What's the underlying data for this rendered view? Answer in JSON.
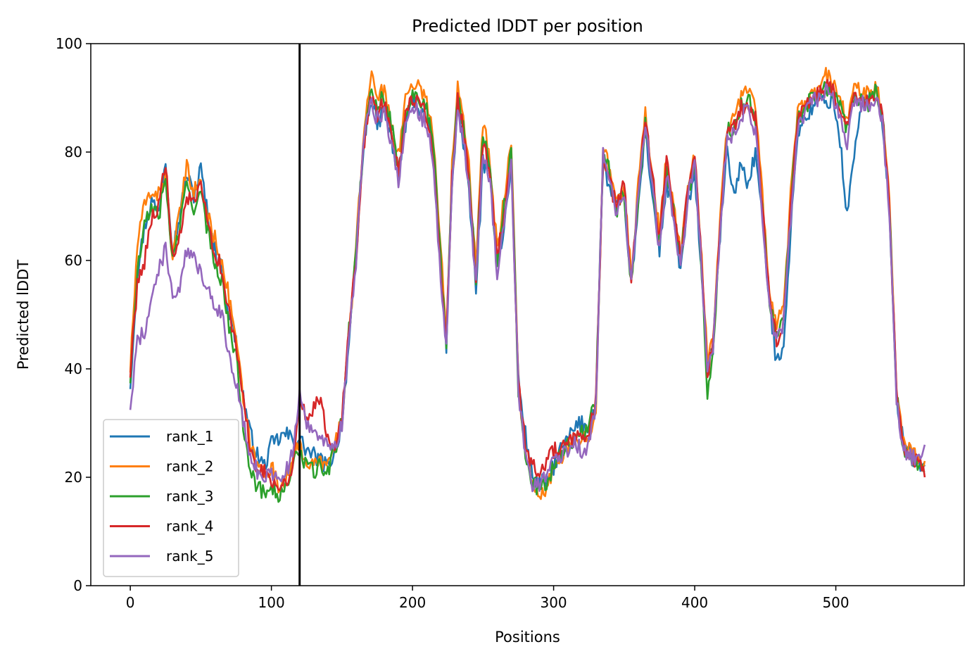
{
  "chart_data": {
    "type": "line",
    "title": "Predicted lDDT per position",
    "xlabel": "Positions",
    "ylabel": "Predicted lDDT",
    "xlim": [
      -28,
      591
    ],
    "ylim": [
      0,
      100
    ],
    "xticks": [
      0,
      100,
      200,
      300,
      400,
      500
    ],
    "yticks": [
      0,
      20,
      40,
      60,
      80,
      100
    ],
    "grid": false,
    "legend_position": "lower-left",
    "vertical_line_x": 120,
    "x_anchor": [
      0,
      5,
      10,
      15,
      20,
      25,
      30,
      35,
      40,
      45,
      50,
      55,
      60,
      65,
      70,
      75,
      80,
      85,
      90,
      95,
      100,
      105,
      110,
      115,
      120,
      125,
      130,
      135,
      140,
      145,
      150,
      155,
      160,
      165,
      170,
      175,
      180,
      185,
      190,
      195,
      200,
      205,
      210,
      215,
      220,
      224,
      228,
      232,
      236,
      240,
      245,
      250,
      255,
      260,
      265,
      270,
      275,
      280,
      285,
      290,
      295,
      300,
      305,
      310,
      315,
      320,
      325,
      330,
      335,
      340,
      345,
      350,
      355,
      360,
      365,
      370,
      375,
      380,
      385,
      390,
      395,
      400,
      405,
      409,
      413,
      418,
      423,
      428,
      433,
      438,
      443,
      448,
      453,
      458,
      463,
      468,
      473,
      478,
      483,
      488,
      493,
      498,
      503,
      508,
      513,
      518,
      523,
      528,
      533,
      538,
      543,
      548,
      553,
      558,
      563
    ],
    "series": [
      {
        "name": "rank_1",
        "color": "#1f77b4",
        "values": [
          37,
          58,
          66,
          71,
          69,
          79,
          62,
          68,
          76,
          72,
          77,
          68,
          62,
          58,
          50,
          45,
          35,
          28,
          24,
          22,
          26,
          27,
          28,
          27,
          27,
          25,
          24,
          23,
          22,
          25,
          30,
          45,
          60,
          80,
          90,
          85,
          88,
          82,
          75,
          85,
          90,
          88,
          86,
          78,
          60,
          44,
          75,
          88,
          82,
          72,
          55,
          78,
          75,
          60,
          66,
          78,
          38,
          28,
          20,
          19,
          19,
          22,
          25,
          27,
          29,
          30,
          29,
          34,
          78,
          73,
          70,
          72,
          55,
          70,
          84,
          72,
          62,
          74,
          68,
          58,
          70,
          75,
          58,
          40,
          44,
          65,
          80,
          72,
          78,
          74,
          80,
          68,
          52,
          41,
          45,
          65,
          84,
          86,
          88,
          90,
          89,
          90,
          82,
          68,
          80,
          88,
          90,
          92,
          86,
          70,
          35,
          26,
          24,
          23,
          22
        ]
      },
      {
        "name": "rank_2",
        "color": "#ff7f0e",
        "values": [
          40,
          63,
          70,
          73,
          72,
          76,
          60,
          69,
          77,
          73,
          74,
          68,
          64,
          60,
          53,
          46,
          34,
          26,
          22,
          21,
          22,
          18,
          20,
          23,
          26,
          23,
          22,
          23,
          22,
          26,
          31,
          46,
          62,
          82,
          94,
          91,
          91,
          86,
          79,
          90,
          93,
          92,
          90,
          82,
          62,
          46,
          78,
          93,
          87,
          78,
          58,
          86,
          78,
          62,
          72,
          82,
          37,
          25,
          18,
          16,
          18,
          21,
          24,
          25,
          26,
          27,
          28,
          33,
          80,
          77,
          70,
          74,
          57,
          74,
          87,
          76,
          65,
          79,
          70,
          61,
          73,
          79,
          60,
          42,
          46,
          68,
          85,
          86,
          91,
          92,
          88,
          72,
          55,
          48,
          52,
          72,
          87,
          89,
          90,
          92,
          94,
          93,
          90,
          85,
          92,
          92,
          91,
          92,
          88,
          72,
          36,
          27,
          25,
          24,
          23
        ]
      },
      {
        "name": "rank_3",
        "color": "#2ca02c",
        "values": [
          38,
          58,
          66,
          70,
          68,
          75,
          60,
          66,
          74,
          70,
          72,
          65,
          60,
          56,
          48,
          42,
          30,
          22,
          18,
          17,
          19,
          16,
          18,
          22,
          25,
          22,
          21,
          22,
          21,
          25,
          31,
          47,
          62,
          81,
          92,
          89,
          90,
          85,
          77,
          87,
          91,
          90,
          88,
          80,
          60,
          44,
          76,
          91,
          85,
          76,
          57,
          84,
          76,
          60,
          70,
          80,
          36,
          24,
          19,
          18,
          19,
          22,
          25,
          26,
          27,
          28,
          29,
          35,
          80,
          76,
          69,
          73,
          55,
          72,
          86,
          75,
          63,
          77,
          69,
          60,
          72,
          78,
          58,
          35,
          43,
          66,
          84,
          84,
          89,
          90,
          86,
          70,
          52,
          46,
          49,
          70,
          86,
          88,
          90,
          91,
          92,
          91,
          88,
          84,
          90,
          90,
          89,
          91,
          87,
          70,
          35,
          25,
          23,
          22,
          21
        ]
      },
      {
        "name": "rank_4",
        "color": "#d62728",
        "values": [
          39,
          56,
          60,
          68,
          70,
          78,
          60,
          64,
          72,
          70,
          74,
          66,
          62,
          58,
          50,
          44,
          35,
          25,
          22,
          21,
          20,
          18,
          19,
          22,
          34,
          31,
          33,
          35,
          27,
          26,
          32,
          48,
          60,
          80,
          91,
          87,
          89,
          84,
          76,
          86,
          90,
          89,
          87,
          79,
          59,
          45,
          75,
          90,
          84,
          75,
          56,
          82,
          76,
          61,
          68,
          79,
          37,
          26,
          22,
          21,
          23,
          25,
          25,
          26,
          27,
          27,
          28,
          34,
          79,
          74,
          70,
          74,
          56,
          73,
          86,
          76,
          64,
          78,
          70,
          61,
          73,
          80,
          60,
          39,
          44,
          66,
          84,
          85,
          88,
          89,
          86,
          70,
          53,
          45,
          49,
          70,
          86,
          88,
          89,
          91,
          92,
          91,
          88,
          84,
          90,
          90,
          89,
          91,
          87,
          70,
          35,
          26,
          24,
          23,
          20
        ]
      },
      {
        "name": "rank_5",
        "color": "#9467bd",
        "values": [
          33,
          45,
          47,
          53,
          58,
          62,
          54,
          54,
          62,
          60,
          58,
          55,
          52,
          50,
          42,
          38,
          30,
          24,
          21,
          20,
          21,
          20,
          21,
          24,
          35,
          30,
          29,
          28,
          25,
          25,
          30,
          46,
          60,
          80,
          90,
          86,
          88,
          82,
          75,
          85,
          88,
          87,
          85,
          77,
          57,
          44,
          73,
          88,
          82,
          73,
          55,
          80,
          74,
          58,
          67,
          78,
          36,
          24,
          19,
          19,
          21,
          23,
          24,
          25,
          26,
          25,
          26,
          33,
          80,
          74,
          68,
          73,
          55,
          72,
          86,
          74,
          62,
          76,
          68,
          59,
          71,
          78,
          58,
          40,
          44,
          66,
          83,
          83,
          87,
          88,
          84,
          68,
          51,
          45,
          48,
          68,
          85,
          87,
          89,
          90,
          91,
          90,
          86,
          82,
          89,
          89,
          88,
          90,
          86,
          68,
          34,
          25,
          24,
          23,
          26
        ]
      }
    ]
  }
}
